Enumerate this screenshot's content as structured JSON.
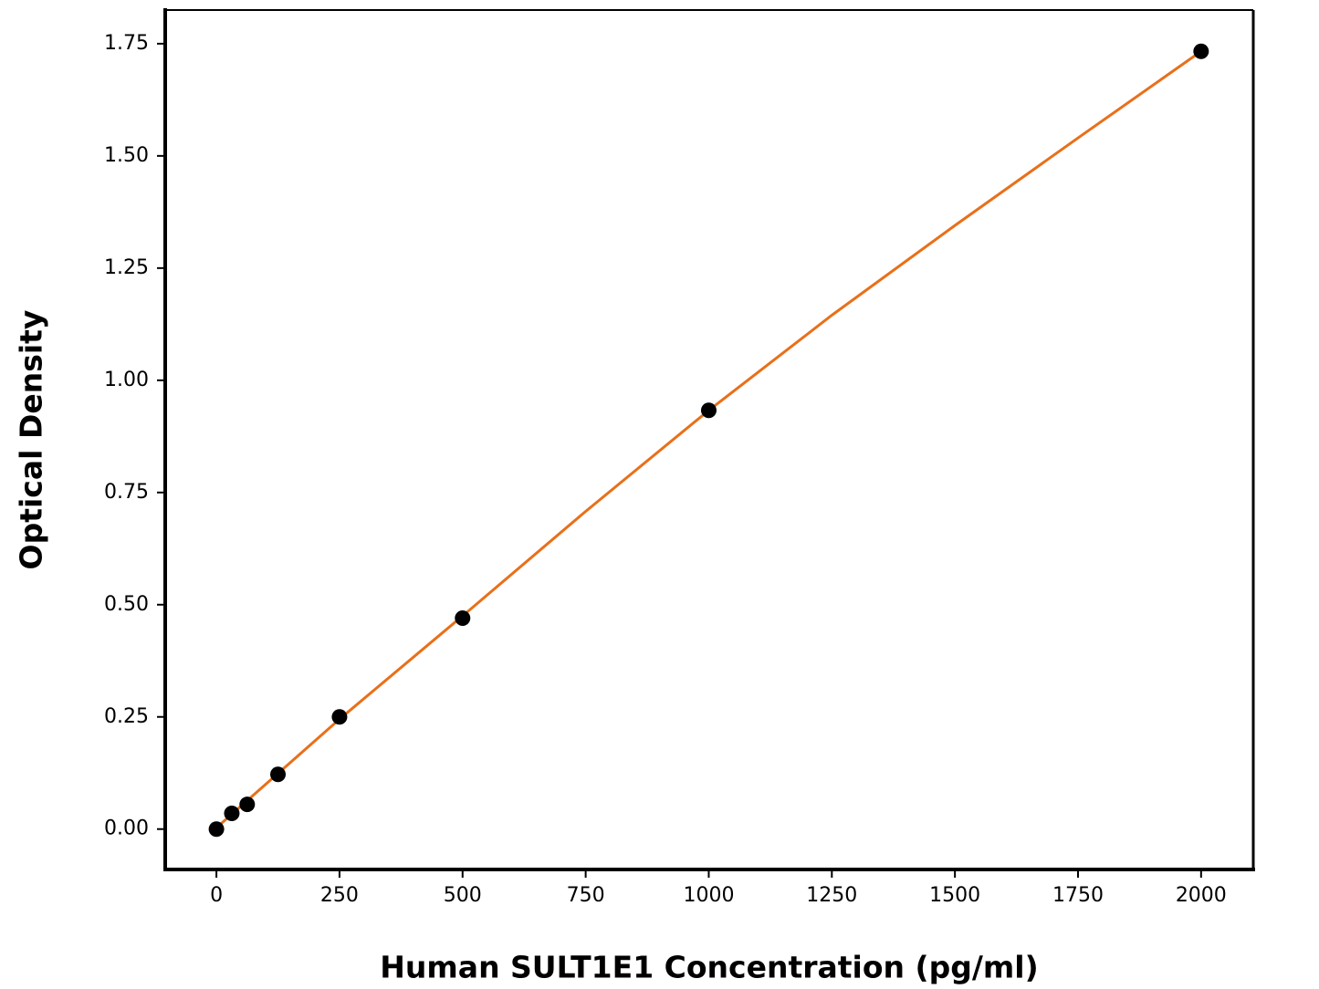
{
  "chart_data": {
    "type": "scatter",
    "x_label": "Human SULT1E1 Concentration (pg/ml)",
    "y_label": "Optical Density",
    "xlim": [
      -104,
      2106
    ],
    "ylim": [
      -0.09,
      1.825
    ],
    "xticks": [
      0,
      250,
      500,
      750,
      1000,
      1250,
      1500,
      1750,
      2000
    ],
    "yticks": [
      {
        "value": 0,
        "label": "0.00"
      },
      0.25,
      {
        "value": 0.5,
        "label": "0.50"
      },
      0.75,
      {
        "value": 1,
        "label": "1.00"
      },
      1.25,
      {
        "value": 1.5,
        "label": "1.50"
      },
      1.75
    ],
    "grid": false,
    "series": [
      {
        "type": "line",
        "color": "#e8701a",
        "x": [
          0,
          250,
          500,
          750,
          1000,
          1250,
          1500,
          1750,
          2000
        ],
        "values": [
          0.003,
          0.245,
          0.475,
          0.708,
          0.933,
          1.145,
          1.345,
          1.54,
          1.733
        ]
      },
      {
        "type": "scatter",
        "color": "#000000",
        "x": [
          0,
          31.25,
          62.5,
          125,
          250,
          500,
          1000,
          2000
        ],
        "values": [
          0.0,
          0.035,
          0.055,
          0.122,
          0.25,
          0.47,
          0.933,
          1.733
        ]
      }
    ]
  }
}
